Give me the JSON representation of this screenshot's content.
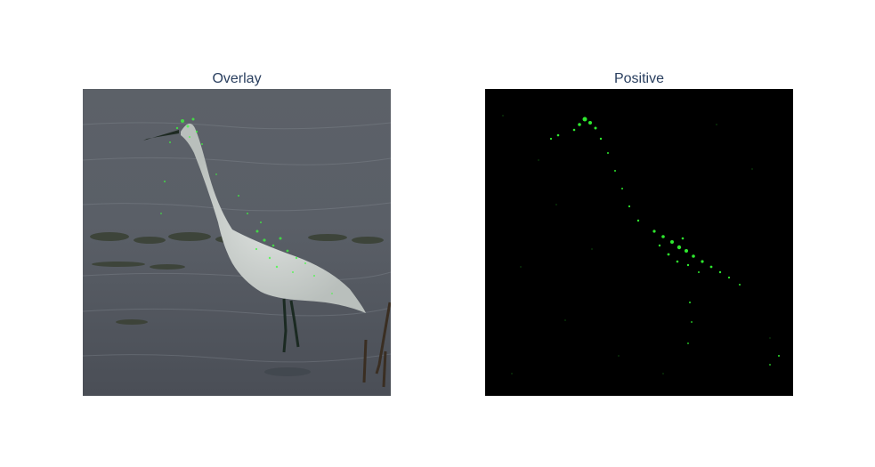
{
  "panels": {
    "overlay": {
      "title": "Overlay"
    },
    "positive": {
      "title": "Positive"
    }
  },
  "colors": {
    "title_text": "#2a3f5f",
    "background": "#ffffff",
    "attribution_green": "#3cff3c",
    "water_gray": "#5a6068",
    "mask_black": "#000000"
  }
}
